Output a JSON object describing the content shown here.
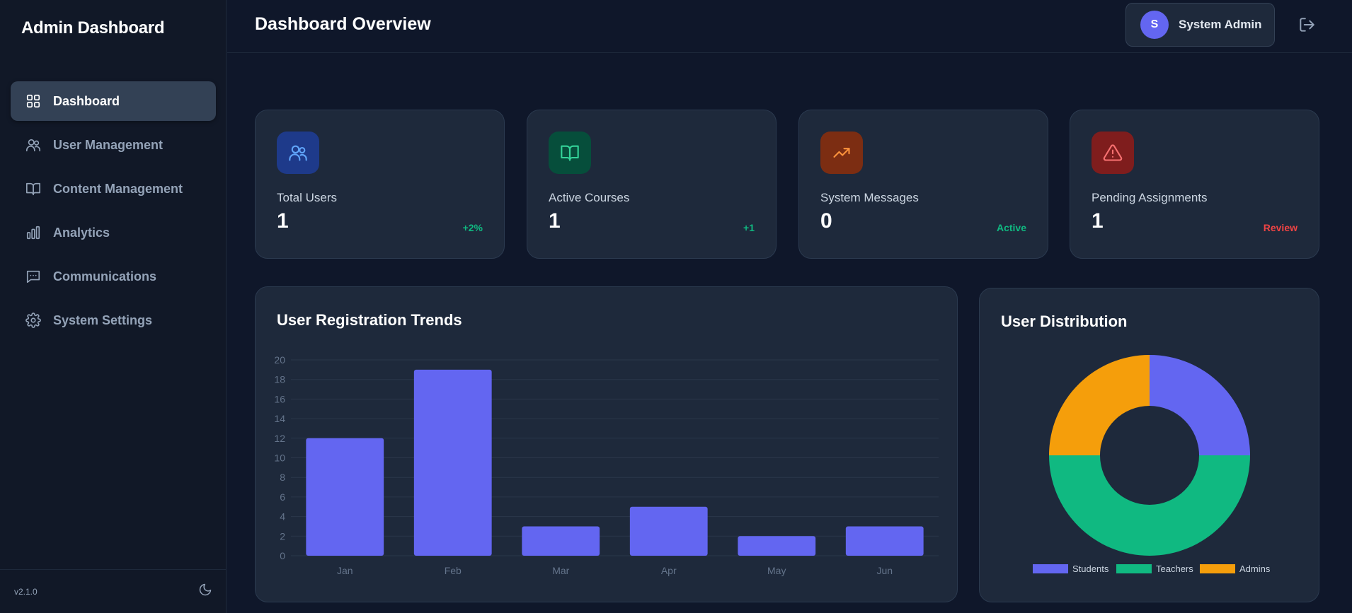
{
  "sidebar": {
    "brand": "Admin Dashboard",
    "items": [
      {
        "label": "Dashboard",
        "icon": "grid-icon",
        "active": true
      },
      {
        "label": "User Management",
        "icon": "users-icon",
        "active": false
      },
      {
        "label": "Content Management",
        "icon": "book-icon",
        "active": false
      },
      {
        "label": "Analytics",
        "icon": "bar-chart-icon",
        "active": false
      },
      {
        "label": "Communications",
        "icon": "message-icon",
        "active": false
      },
      {
        "label": "System Settings",
        "icon": "gear-icon",
        "active": false
      }
    ],
    "version": "v2.1.0",
    "theme_icon": "moon-icon"
  },
  "header": {
    "title": "Dashboard Overview",
    "user": {
      "initial": "S",
      "name": "System Admin"
    },
    "logout_icon": "logout-icon"
  },
  "stats": [
    {
      "label": "Total Users",
      "value": "1",
      "badge": "+2%",
      "badge_color": "#10b981",
      "icon": "users-icon",
      "icon_color": "#60a5fa",
      "icon_bg": "#1e3a8a"
    },
    {
      "label": "Active Courses",
      "value": "1",
      "badge": "+1",
      "badge_color": "#10b981",
      "icon": "book-icon",
      "icon_color": "#34d399",
      "icon_bg": "#064e3b"
    },
    {
      "label": "System Messages",
      "value": "0",
      "badge": "Active",
      "badge_color": "#10b981",
      "icon": "trending-up-icon",
      "icon_color": "#fb923c",
      "icon_bg": "#7c2d12"
    },
    {
      "label": "Pending Assignments",
      "value": "1",
      "badge": "Review",
      "badge_color": "#ef4444",
      "icon": "alert-triangle-icon",
      "icon_color": "#f87171",
      "icon_bg": "#7f1d1d"
    }
  ],
  "charts": {
    "registration_title": "User Registration Trends",
    "distribution_title": "User Distribution"
  },
  "chart_data": [
    {
      "type": "bar",
      "title": "User Registration Trends",
      "categories": [
        "Jan",
        "Feb",
        "Mar",
        "Apr",
        "May",
        "Jun"
      ],
      "values": [
        12,
        19,
        3,
        5,
        2,
        3
      ],
      "ylim": [
        0,
        20
      ],
      "yticks": [
        0,
        2,
        4,
        6,
        8,
        10,
        12,
        14,
        16,
        18,
        20
      ],
      "color": "#6366f1",
      "grid": true
    },
    {
      "type": "pie",
      "title": "User Distribution",
      "donut": true,
      "labels": [
        "Students",
        "Teachers",
        "Admins"
      ],
      "values": [
        1,
        2,
        1
      ],
      "colors": [
        "#6366f1",
        "#10b981",
        "#f59e0b"
      ],
      "legend": "bottom"
    }
  ]
}
